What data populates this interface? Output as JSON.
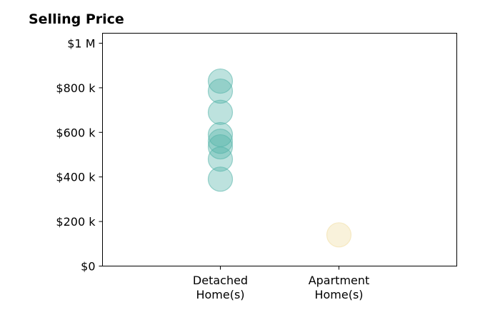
{
  "chart_data": {
    "type": "scatter",
    "title": "Selling Price",
    "xlabel": "",
    "ylabel": "",
    "categories": [
      [
        "Detached",
        "Home(s)"
      ],
      [
        "Apartment",
        "Home(s)"
      ]
    ],
    "ylim": [
      0,
      1000000
    ],
    "yticks": [
      {
        "value": 0,
        "label": "$0"
      },
      {
        "value": 200000,
        "label": "$200 k"
      },
      {
        "value": 400000,
        "label": "$400 k"
      },
      {
        "value": 600000,
        "label": "$600 k"
      },
      {
        "value": 800000,
        "label": "$800 k"
      },
      {
        "value": 1000000,
        "label": "$1 M"
      }
    ],
    "series": [
      {
        "category_index": 0,
        "color": "#52b3a8",
        "values": [
          830000,
          785000,
          690000,
          590000,
          560000,
          535000,
          480000,
          390000
        ]
      },
      {
        "category_index": 1,
        "color": "#f0dca0",
        "values": [
          140000
        ]
      }
    ],
    "grid": false
  }
}
